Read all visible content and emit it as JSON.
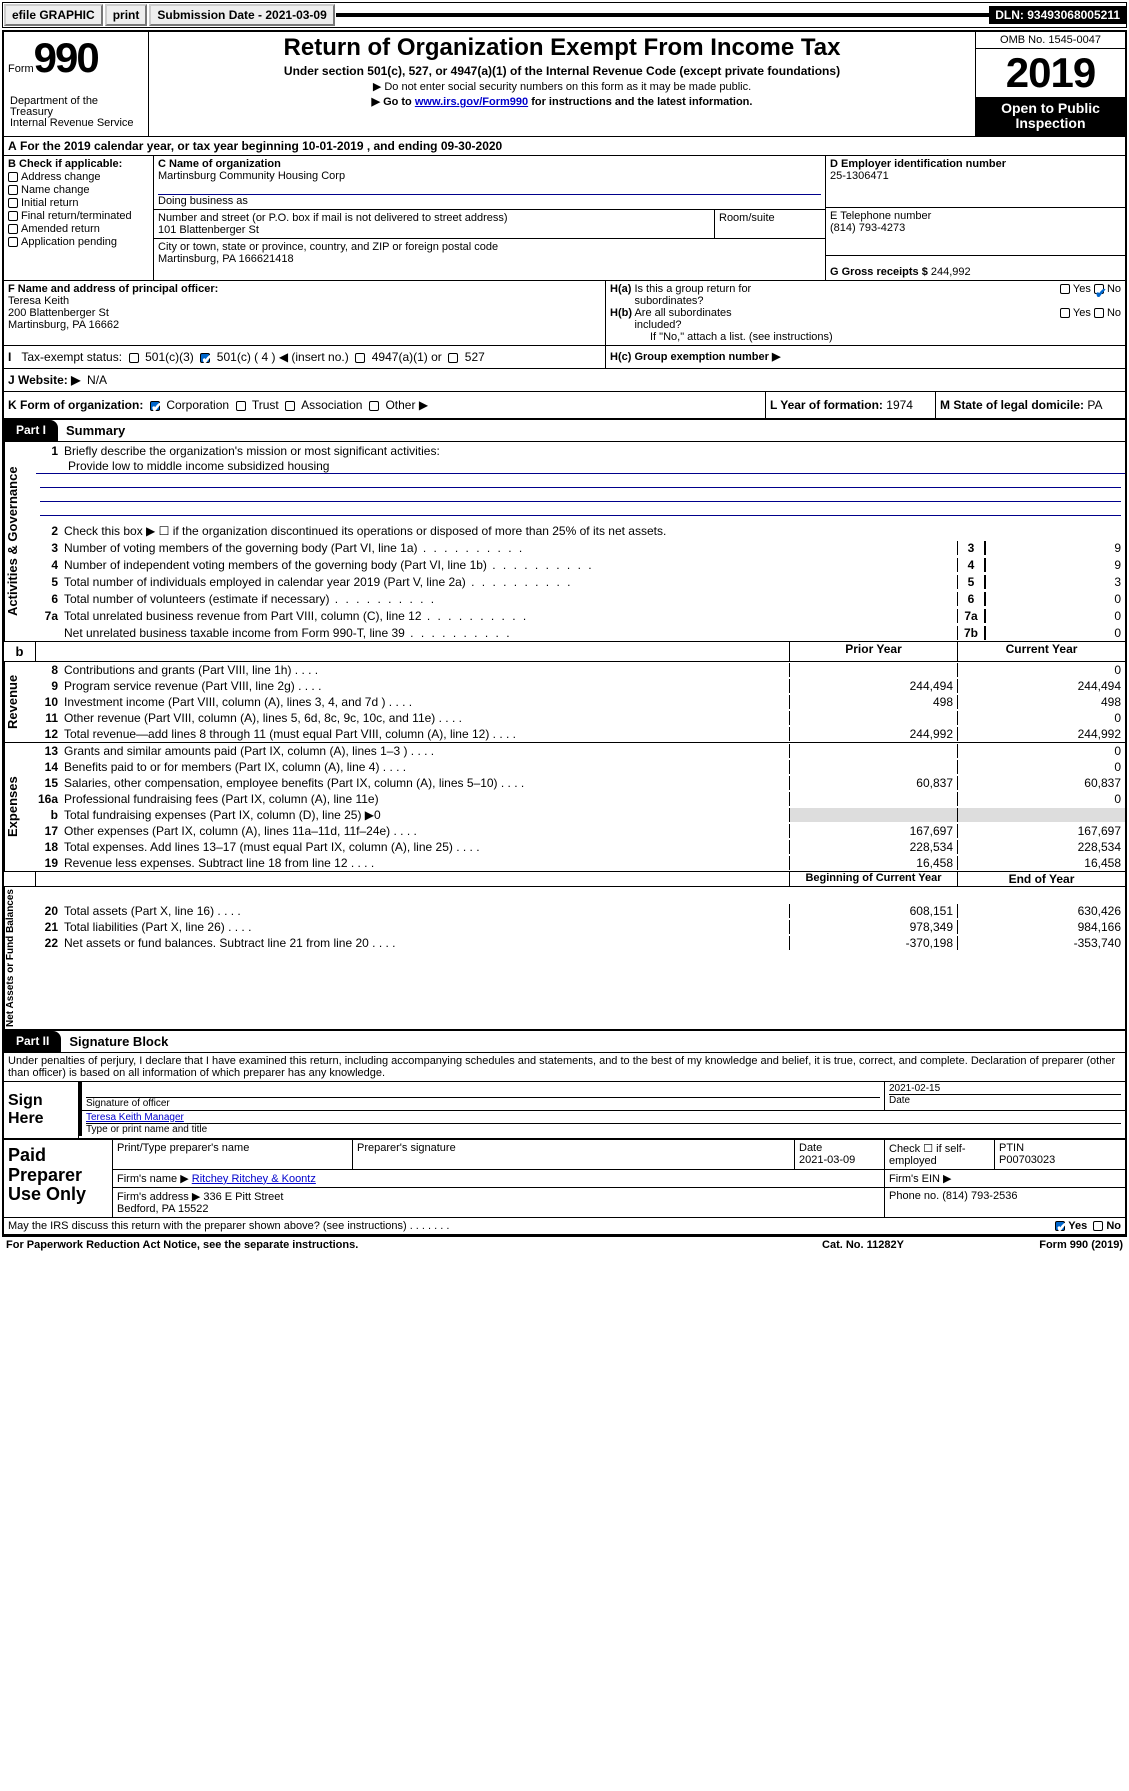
{
  "topbar": {
    "efile": "efile GRAPHIC",
    "print": "print",
    "sub_label": "Submission Date - 2021-03-09",
    "dln": "DLN: 93493068005211"
  },
  "header": {
    "form_word": "Form",
    "form_num": "990",
    "title": "Return of Organization Exempt From Income Tax",
    "subtitle": "Under section 501(c), 527, or 4947(a)(1) of the Internal Revenue Code (except private foundations)",
    "note1": "▶ Do not enter social security numbers on this form as it may be made public.",
    "note2_prefix": "▶ Go to ",
    "note2_link": "www.irs.gov/Form990",
    "note2_suffix": " for instructions and the latest information.",
    "dept": "Department of the Treasury\nInternal Revenue Service",
    "omb": "OMB No. 1545-0047",
    "year": "2019",
    "open": "Open to Public Inspection"
  },
  "period": {
    "text": "For the 2019 calendar year, or tax year beginning 10-01-2019     , and ending 09-30-2020",
    "prefix": "A"
  },
  "boxB": {
    "label": "B Check if applicable:",
    "items": [
      "Address change",
      "Name change",
      "Initial return",
      "Final return/terminated",
      "Amended return",
      "Application pending"
    ]
  },
  "boxC": {
    "label": "C Name of organization",
    "name": "Martinsburg Community Housing Corp",
    "dba_label": "Doing business as",
    "addr_label": "Number and street (or P.O. box if mail is not delivered to street address)",
    "room_label": "Room/suite",
    "addr": "101 Blattenberger St",
    "city_label": "City or town, state or province, country, and ZIP or foreign postal code",
    "city": "Martinsburg, PA  166621418"
  },
  "boxD": {
    "label": "D Employer identification number",
    "value": "25-1306471"
  },
  "boxE": {
    "label": "E Telephone number",
    "value": "(814) 793-4273"
  },
  "boxG": {
    "label": "G Gross receipts $",
    "value": "244,992"
  },
  "boxF": {
    "label": "F  Name and address of principal officer:",
    "name": "Teresa Keith",
    "addr1": "200 Blattenberger St",
    "addr2": "Martinsburg, PA  16662"
  },
  "boxH": {
    "a": "H(a)  Is this a group return for subordinates?",
    "b": "H(b)  Are all subordinates included?",
    "b_note": "If \"No,\" attach a list. (see instructions)",
    "c": "H(c)  Group exemption number ▶",
    "yes": "Yes",
    "no": "No"
  },
  "taxstatus": {
    "label": "Tax-exempt status:",
    "opt1": "501(c)(3)",
    "opt2": "501(c) ( 4 ) ◀ (insert no.)",
    "opt3": "4947(a)(1) or",
    "opt4": "527"
  },
  "boxJ": {
    "label": "J   Website: ▶",
    "value": "N/A"
  },
  "boxK": {
    "label": "K Form of organization:",
    "opts": [
      "Corporation",
      "Trust",
      "Association",
      "Other ▶"
    ],
    "checked": 0
  },
  "boxL": {
    "label": "L Year of formation:",
    "value": "1974"
  },
  "boxM": {
    "label": "M State of legal domicile:",
    "value": "PA"
  },
  "part1": {
    "tab": "Part I",
    "title": "Summary"
  },
  "summary": {
    "q1": "Briefly describe the organization's mission or most significant activities:",
    "mission": "Provide low to middle income subsidized housing",
    "q2": "Check this box ▶ ☐  if the organization discontinued its operations or disposed of more than 25% of its net assets.",
    "lines_gov": [
      {
        "n": "3",
        "t": "Number of voting members of the governing body (Part VI, line 1a)",
        "box": "3",
        "v": "9"
      },
      {
        "n": "4",
        "t": "Number of independent voting members of the governing body (Part VI, line 1b)",
        "box": "4",
        "v": "9"
      },
      {
        "n": "5",
        "t": "Total number of individuals employed in calendar year 2019 (Part V, line 2a)",
        "box": "5",
        "v": "3"
      },
      {
        "n": "6",
        "t": "Total number of volunteers (estimate if necessary)",
        "box": "6",
        "v": "0"
      },
      {
        "n": "7a",
        "t": "Total unrelated business revenue from Part VIII, column (C), line 12",
        "box": "7a",
        "v": "0"
      },
      {
        "n": "",
        "t": "Net unrelated business taxable income from Form 990-T, line 39",
        "box": "7b",
        "v": "0"
      }
    ],
    "hdr_prior": "Prior Year",
    "hdr_curr": "Current Year",
    "revenue": [
      {
        "n": "8",
        "t": "Contributions and grants (Part VIII, line 1h)",
        "p": "",
        "c": "0"
      },
      {
        "n": "9",
        "t": "Program service revenue (Part VIII, line 2g)",
        "p": "244,494",
        "c": "244,494"
      },
      {
        "n": "10",
        "t": "Investment income (Part VIII, column (A), lines 3, 4, and 7d )",
        "p": "498",
        "c": "498"
      },
      {
        "n": "11",
        "t": "Other revenue (Part VIII, column (A), lines 5, 6d, 8c, 9c, 10c, and 11e)",
        "p": "",
        "c": "0"
      },
      {
        "n": "12",
        "t": "Total revenue—add lines 8 through 11 (must equal Part VIII, column (A), line 12)",
        "p": "244,992",
        "c": "244,992"
      }
    ],
    "expenses": [
      {
        "n": "13",
        "t": "Grants and similar amounts paid (Part IX, column (A), lines 1–3 )",
        "p": "",
        "c": "0"
      },
      {
        "n": "14",
        "t": "Benefits paid to or for members (Part IX, column (A), line 4)",
        "p": "",
        "c": "0"
      },
      {
        "n": "15",
        "t": "Salaries, other compensation, employee benefits (Part IX, column (A), lines 5–10)",
        "p": "60,837",
        "c": "60,837"
      },
      {
        "n": "16a",
        "t": "Professional fundraising fees (Part IX, column (A), line 11e)",
        "p": "",
        "c": "0"
      },
      {
        "n": "b",
        "t": "Total fundraising expenses (Part IX, column (D), line 25) ▶0",
        "p": "shade",
        "c": "shade"
      },
      {
        "n": "17",
        "t": "Other expenses (Part IX, column (A), lines 11a–11d, 11f–24e)",
        "p": "167,697",
        "c": "167,697"
      },
      {
        "n": "18",
        "t": "Total expenses. Add lines 13–17 (must equal Part IX, column (A), line 25)",
        "p": "228,534",
        "c": "228,534"
      },
      {
        "n": "19",
        "t": "Revenue less expenses. Subtract line 18 from line 12",
        "p": "16,458",
        "c": "16,458"
      }
    ],
    "hdr_begin": "Beginning of Current Year",
    "hdr_end": "End of Year",
    "netassets": [
      {
        "n": "20",
        "t": "Total assets (Part X, line 16)",
        "p": "608,151",
        "c": "630,426"
      },
      {
        "n": "21",
        "t": "Total liabilities (Part X, line 26)",
        "p": "978,349",
        "c": "984,166"
      },
      {
        "n": "22",
        "t": "Net assets or fund balances. Subtract line 21 from line 20",
        "p": "-370,198",
        "c": "-353,740"
      }
    ]
  },
  "sidelabels": {
    "gov": "Activities & Governance",
    "rev": "Revenue",
    "exp": "Expenses",
    "net": "Net Assets or Fund Balances"
  },
  "part2": {
    "tab": "Part II",
    "title": "Signature Block"
  },
  "perjury": "Under penalties of perjury, I declare that I have examined this return, including accompanying schedules and statements, and to the best of my knowledge and belief, it is true, correct, and complete. Declaration of preparer (other than officer) is based on all information of which preparer has any knowledge.",
  "sign": {
    "here": "Sign Here",
    "sig_label": "Signature of officer",
    "date": "2021-02-15",
    "date_label": "Date",
    "name": "Teresa Keith  Manager",
    "name_label": "Type or print name and title"
  },
  "paid": {
    "label": "Paid Preparer Use Only",
    "h_prep": "Print/Type preparer's name",
    "h_sig": "Preparer's signature",
    "h_date": "Date",
    "date": "2021-03-09",
    "h_chk": "Check ☐ if self-employed",
    "h_ptin": "PTIN",
    "ptin": "P00703023",
    "firm_name_l": "Firm's name    ▶",
    "firm_name": "Ritchey Ritchey & Koontz",
    "firm_ein_l": "Firm's EIN ▶",
    "firm_addr_l": "Firm's address ▶",
    "firm_addr": "336 E Pitt Street\nBedford, PA  15522",
    "firm_phone_l": "Phone no.",
    "firm_phone": "(814) 793-2536"
  },
  "discuss": {
    "text": "May the IRS discuss this return with the preparer shown above? (see instructions)",
    "yes": "Yes",
    "no": "No"
  },
  "footer": {
    "left": "For Paperwork Reduction Act Notice, see the separate instructions.",
    "mid": "Cat. No. 11282Y",
    "right": "Form 990 (2019)"
  }
}
